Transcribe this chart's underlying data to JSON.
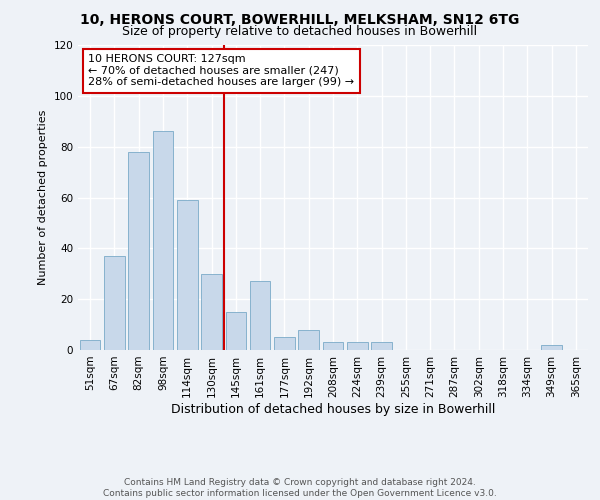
{
  "title": "10, HERONS COURT, BOWERHILL, MELKSHAM, SN12 6TG",
  "subtitle": "Size of property relative to detached houses in Bowerhill",
  "xlabel": "Distribution of detached houses by size in Bowerhill",
  "ylabel": "Number of detached properties",
  "bar_color": "#c8d8ea",
  "bar_edge_color": "#7aaac8",
  "categories": [
    "51sqm",
    "67sqm",
    "82sqm",
    "98sqm",
    "114sqm",
    "130sqm",
    "145sqm",
    "161sqm",
    "177sqm",
    "192sqm",
    "208sqm",
    "224sqm",
    "239sqm",
    "255sqm",
    "271sqm",
    "287sqm",
    "302sqm",
    "318sqm",
    "334sqm",
    "349sqm",
    "365sqm"
  ],
  "values": [
    4,
    37,
    78,
    86,
    59,
    30,
    15,
    27,
    5,
    8,
    3,
    3,
    3,
    0,
    0,
    0,
    0,
    0,
    0,
    2,
    0
  ],
  "ylim": [
    0,
    120
  ],
  "yticks": [
    0,
    20,
    40,
    60,
    80,
    100,
    120
  ],
  "vline_x_index": 5.5,
  "vline_color": "#cc0000",
  "annotation_line1": "10 HERONS COURT: 127sqm",
  "annotation_line2": "← 70% of detached houses are smaller (247)",
  "annotation_line3": "28% of semi-detached houses are larger (99) →",
  "annotation_box_color": "#ffffff",
  "annotation_box_edge": "#cc0000",
  "footer_text": "Contains HM Land Registry data © Crown copyright and database right 2024.\nContains public sector information licensed under the Open Government Licence v3.0.",
  "background_color": "#eef2f7",
  "grid_color": "#ffffff",
  "title_fontsize": 10,
  "subtitle_fontsize": 9,
  "xlabel_fontsize": 9,
  "ylabel_fontsize": 8,
  "tick_fontsize": 7.5,
  "annotation_fontsize": 8,
  "footer_fontsize": 6.5
}
